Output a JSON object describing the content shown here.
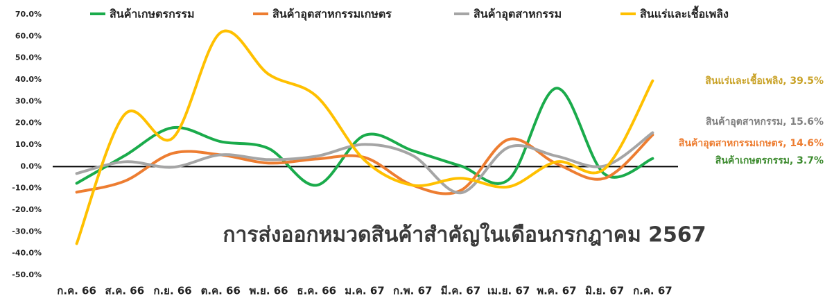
{
  "chart_data": {
    "type": "line",
    "title": "การส่งออกหมวดสินค้าสำคัญในเดือนกรกฎาคม 2567",
    "categories": [
      "ก.ค. 66",
      "ส.ค. 66",
      "ก.ย. 66",
      "ต.ค. 66",
      "พ.ย. 66",
      "ธ.ค. 66",
      "ม.ค. 67",
      "ก.พ. 67",
      "มี.ค. 67",
      "เม.ย. 67",
      "พ.ค. 67",
      "มิ.ย. 67",
      "ก.ค. 67"
    ],
    "series": [
      {
        "name": "สินค้าเกษตรกรรม",
        "color": "#1aab4b",
        "label_color": "#3d8b2f",
        "values": [
          -7.7,
          5,
          17.9,
          11.5,
          8.3,
          -8.6,
          14.4,
          7.3,
          0.3,
          -6,
          36.1,
          -3.5,
          3.7
        ],
        "value_labels": [
          null,
          null,
          null,
          null,
          null,
          null,
          null,
          null,
          null,
          null,
          null,
          null,
          "สินค้าเกษตรกรรม, 3.7%"
        ]
      },
      {
        "name": "สินค้าอุตสาหกรรมเกษตร",
        "color": "#ed7d31",
        "label_color": "#ed7d31",
        "values": [
          -11.8,
          -6.7,
          6.1,
          5.4,
          1.6,
          3.5,
          4.2,
          -8.6,
          -11,
          12.5,
          1.3,
          -5.4,
          14.6
        ],
        "value_labels": [
          null,
          null,
          null,
          null,
          null,
          null,
          null,
          null,
          null,
          null,
          null,
          null,
          "สินค้าอุตสาหกรรมเกษตร, 14.6%"
        ]
      },
      {
        "name": "สินค้าอุตสาหกรรม",
        "color": "#a5a5a5",
        "label_color": "#7f7f7f",
        "values": [
          -3.2,
          2.2,
          -0.3,
          5.4,
          3.2,
          4.8,
          10.2,
          5.1,
          -12.1,
          8.9,
          4.8,
          0.3,
          15.6
        ],
        "value_labels": [
          null,
          null,
          null,
          null,
          null,
          null,
          null,
          null,
          null,
          null,
          null,
          null,
          "สินค้าอุตสาหกรรม, 15.6%"
        ]
      },
      {
        "name": "สินแร่และเชื้อเพลิง",
        "color": "#ffc000",
        "label_color": "#c9a227",
        "values": [
          -35.5,
          24,
          13.1,
          61.7,
          42.5,
          32.3,
          2.9,
          -8.6,
          -5.4,
          -9.3,
          2.2,
          -1,
          39.5
        ],
        "value_labels": [
          null,
          null,
          null,
          null,
          null,
          null,
          null,
          null,
          null,
          null,
          null,
          null,
          "สินแร่และเชื้อเพลิง, 39.5%"
        ]
      }
    ],
    "ylim": [
      -50,
      70
    ],
    "yticks": [
      {
        "value": -50,
        "label": "-50.0%"
      },
      {
        "value": -40,
        "label": "-40.0%"
      },
      {
        "value": -30,
        "label": "-30.0%"
      },
      {
        "value": -20,
        "label": "-20.0%"
      },
      {
        "value": -10,
        "label": "-10.0%"
      },
      {
        "value": 0,
        "label": "0.0%"
      },
      {
        "value": 10,
        "label": "10.0%"
      },
      {
        "value": 20,
        "label": "20.0%"
      },
      {
        "value": 30,
        "label": "30.0%"
      },
      {
        "value": 40,
        "label": "40.0%"
      },
      {
        "value": 50,
        "label": "50.0%"
      },
      {
        "value": 60,
        "label": "60.0%"
      },
      {
        "value": 70,
        "label": "70.0%"
      }
    ],
    "grid": false,
    "legend": "top"
  }
}
